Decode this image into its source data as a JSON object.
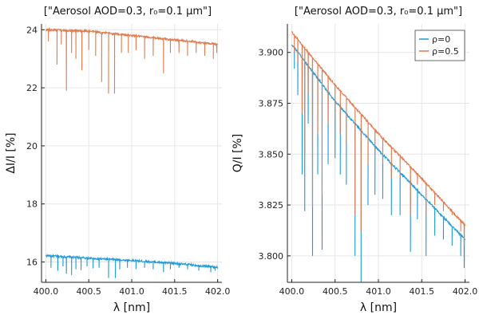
{
  "chart_data": [
    {
      "type": "line",
      "title": "[\"Aerosol AOD=0.3, r₀=0.1 μm\"]",
      "xlabel": "λ [nm]",
      "ylabel": "ΔI/I [%]",
      "xlim": [
        399.95,
        402.05
      ],
      "ylim": [
        15.3,
        24.2
      ],
      "xticks": [
        400.0,
        400.5,
        401.0,
        401.5,
        402.0
      ],
      "xtick_labels": [
        "400.0",
        "400.5",
        "401.0",
        "401.5",
        "402.0"
      ],
      "yticks": [
        16,
        18,
        20,
        22,
        24
      ],
      "ytick_labels": [
        "16",
        "18",
        "20",
        "22",
        "24"
      ],
      "grid": true,
      "legend": "none",
      "series": [
        {
          "color": "#1f9bd9",
          "x": [
            400.0,
            400.5,
            401.0,
            401.5,
            402.0
          ],
          "y": [
            16.22,
            16.13,
            16.05,
            15.95,
            15.82
          ],
          "dips": [
            [
              400.06,
              15.8
            ],
            [
              400.14,
              15.7
            ],
            [
              400.2,
              15.85
            ],
            [
              400.24,
              15.6
            ],
            [
              400.3,
              15.55
            ],
            [
              400.35,
              15.75
            ],
            [
              400.41,
              15.72
            ],
            [
              400.48,
              15.85
            ],
            [
              400.55,
              15.78
            ],
            [
              400.62,
              15.8
            ],
            [
              400.73,
              15.45
            ],
            [
              400.81,
              15.45
            ],
            [
              400.86,
              15.75
            ],
            [
              400.95,
              15.8
            ],
            [
              401.05,
              15.75
            ],
            [
              401.15,
              15.8
            ],
            [
              401.25,
              15.75
            ],
            [
              401.37,
              15.65
            ],
            [
              401.45,
              15.75
            ],
            [
              401.55,
              15.8
            ],
            [
              401.65,
              15.75
            ],
            [
              401.78,
              15.7
            ],
            [
              401.92,
              15.65
            ],
            [
              401.97,
              15.7
            ]
          ]
        },
        {
          "color": "#e07b4f",
          "x": [
            400.0,
            400.5,
            401.0,
            401.5,
            402.0
          ],
          "y": [
            24.0,
            23.95,
            23.8,
            23.65,
            23.5
          ],
          "dips": [
            [
              400.03,
              23.6
            ],
            [
              400.13,
              22.8
            ],
            [
              400.18,
              23.5
            ],
            [
              400.24,
              21.9
            ],
            [
              400.3,
              23.2
            ],
            [
              400.35,
              23.0
            ],
            [
              400.42,
              22.6
            ],
            [
              400.5,
              23.3
            ],
            [
              400.58,
              23.1
            ],
            [
              400.65,
              22.2
            ],
            [
              400.73,
              21.8
            ],
            [
              400.8,
              21.8
            ],
            [
              400.88,
              23.2
            ],
            [
              400.96,
              23.2
            ],
            [
              401.05,
              23.3
            ],
            [
              401.15,
              23.0
            ],
            [
              401.25,
              23.1
            ],
            [
              401.37,
              22.5
            ],
            [
              401.45,
              23.2
            ],
            [
              401.55,
              23.2
            ],
            [
              401.65,
              23.1
            ],
            [
              401.75,
              23.2
            ],
            [
              401.85,
              23.1
            ],
            [
              401.95,
              23.0
            ],
            [
              401.99,
              23.2
            ]
          ]
        }
      ]
    },
    {
      "type": "line",
      "title": "[\"Aerosol AOD=0.3, r₀=0.1 μm\"]",
      "xlabel": "λ [nm]",
      "ylabel": "Q/I [%]",
      "xlim": [
        399.95,
        402.05
      ],
      "ylim": [
        3.787,
        3.914
      ],
      "xticks": [
        400.0,
        400.5,
        401.0,
        401.5,
        402.0
      ],
      "xtick_labels": [
        "400.0",
        "400.5",
        "401.0",
        "401.5",
        "402.0"
      ],
      "yticks": [
        3.8,
        3.825,
        3.85,
        3.875,
        3.9
      ],
      "ytick_labels": [
        "3.800",
        "3.825",
        "3.850",
        "3.875",
        "3.900"
      ],
      "grid": true,
      "legend": "top-right",
      "series": [
        {
          "name": "ρ=0",
          "color": "#1f9bd9",
          "x": [
            400.0,
            400.5,
            401.0,
            401.5,
            402.0
          ],
          "y": [
            3.904,
            3.876,
            3.852,
            3.83,
            3.808
          ],
          "dips": [
            [
              400.03,
              3.892
            ],
            [
              400.07,
              3.879
            ],
            [
              400.12,
              3.84
            ],
            [
              400.15,
              3.822
            ],
            [
              400.19,
              3.865
            ],
            [
              400.24,
              3.8
            ],
            [
              400.3,
              3.84
            ],
            [
              400.35,
              3.803
            ],
            [
              400.42,
              3.845
            ],
            [
              400.5,
              3.848
            ],
            [
              400.56,
              3.84
            ],
            [
              400.63,
              3.835
            ],
            [
              400.73,
              3.8
            ],
            [
              400.8,
              3.787
            ],
            [
              400.88,
              3.825
            ],
            [
              400.96,
              3.83
            ],
            [
              401.05,
              3.828
            ],
            [
              401.15,
              3.82
            ],
            [
              401.25,
              3.82
            ],
            [
              401.37,
              3.802
            ],
            [
              401.45,
              3.818
            ],
            [
              401.55,
              3.8
            ],
            [
              401.65,
              3.81
            ],
            [
              401.75,
              3.808
            ],
            [
              401.85,
              3.805
            ],
            [
              401.95,
              3.8
            ],
            [
              401.99,
              3.794
            ]
          ]
        },
        {
          "name": "ρ=0.5",
          "color": "#e07b4f",
          "x": [
            400.0,
            400.5,
            401.0,
            401.5,
            402.0
          ],
          "y": [
            3.91,
            3.884,
            3.86,
            3.838,
            3.815
          ],
          "dips": [
            [
              400.03,
              3.9
            ],
            [
              400.07,
              3.895
            ],
            [
              400.12,
              3.87
            ],
            [
              400.15,
              3.85
            ],
            [
              400.19,
              3.88
            ],
            [
              400.24,
              3.824
            ],
            [
              400.3,
              3.86
            ],
            [
              400.35,
              3.83
            ],
            [
              400.42,
              3.865
            ],
            [
              400.5,
              3.868
            ],
            [
              400.56,
              3.86
            ],
            [
              400.63,
              3.855
            ],
            [
              400.73,
              3.82
            ],
            [
              400.8,
              3.812
            ],
            [
              400.88,
              3.845
            ],
            [
              400.96,
              3.85
            ],
            [
              401.05,
              3.845
            ],
            [
              401.15,
              3.838
            ],
            [
              401.25,
              3.838
            ],
            [
              401.37,
              3.82
            ],
            [
              401.45,
              3.835
            ],
            [
              401.55,
              3.82
            ],
            [
              401.65,
              3.825
            ],
            [
              401.75,
              3.822
            ],
            [
              401.85,
              3.82
            ],
            [
              401.95,
              3.812
            ],
            [
              401.99,
              3.805
            ]
          ]
        }
      ]
    }
  ]
}
